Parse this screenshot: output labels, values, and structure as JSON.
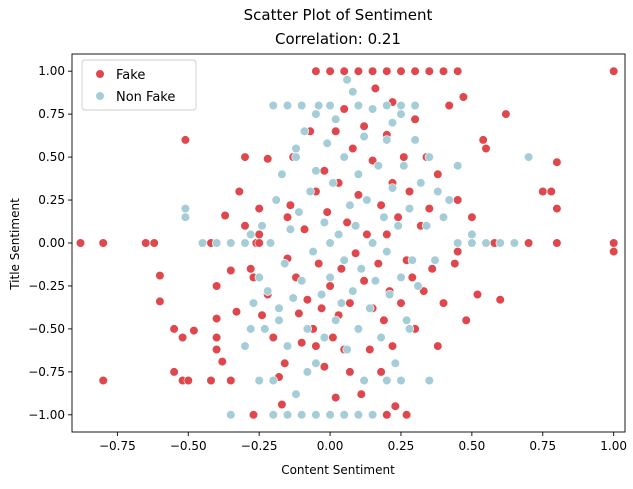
{
  "chart_data": {
    "type": "scatter",
    "title": "Scatter Plot of Sentiment",
    "subtitle": "Correlation: 0.21",
    "xlabel": "Content Sentiment",
    "ylabel": "Title Sentiment",
    "xlim": [
      -0.91,
      1.04
    ],
    "ylim": [
      -1.1,
      1.1
    ],
    "xticks": [
      -0.75,
      -0.5,
      -0.25,
      0.0,
      0.25,
      0.5,
      0.75,
      1.0
    ],
    "xtick_labels": [
      "−0.75",
      "−0.50",
      "−0.25",
      "0.00",
      "0.25",
      "0.50",
      "0.75",
      "1.00"
    ],
    "yticks": [
      -1.0,
      -0.75,
      -0.5,
      -0.25,
      0.0,
      0.25,
      0.5,
      0.75,
      1.0
    ],
    "ytick_labels": [
      "−1.00",
      "−0.75",
      "−0.50",
      "−0.25",
      "0.00",
      "0.25",
      "0.50",
      "0.75",
      "1.00"
    ],
    "grid": false,
    "legend_position": "top-left",
    "series": [
      {
        "name": "Fake",
        "color": "#e0474c",
        "points": [
          [
            -0.88,
            0.0
          ],
          [
            -0.8,
            0.0
          ],
          [
            -0.8,
            -0.8
          ],
          [
            -0.65,
            0.0
          ],
          [
            -0.62,
            0.0
          ],
          [
            -0.6,
            -0.19
          ],
          [
            -0.6,
            -0.34
          ],
          [
            -0.55,
            -0.75
          ],
          [
            -0.55,
            -0.5
          ],
          [
            -0.52,
            -0.55
          ],
          [
            -0.52,
            -0.8
          ],
          [
            -0.51,
            0.6
          ],
          [
            -0.5,
            -0.8
          ],
          [
            -0.48,
            -0.51
          ],
          [
            -0.45,
            0.0
          ],
          [
            -0.42,
            0.0
          ],
          [
            -0.42,
            -0.8
          ],
          [
            -0.4,
            0.0
          ],
          [
            -0.4,
            -0.25
          ],
          [
            -0.4,
            -0.44
          ],
          [
            -0.4,
            -0.55
          ],
          [
            -0.4,
            -0.62
          ],
          [
            -0.38,
            -0.69
          ],
          [
            -0.37,
            0.16
          ],
          [
            -0.35,
            -0.8
          ],
          [
            -0.35,
            -0.16
          ],
          [
            -0.33,
            -0.4
          ],
          [
            -0.3,
            0.5
          ],
          [
            -0.3,
            0.1
          ],
          [
            -0.28,
            -0.15
          ],
          [
            -0.27,
            -0.2
          ],
          [
            -0.26,
            0.0
          ],
          [
            -0.25,
            0.0
          ],
          [
            -0.25,
            0.05
          ],
          [
            -0.25,
            0.2
          ],
          [
            -0.22,
            0.49
          ],
          [
            -0.22,
            -0.3
          ],
          [
            -0.2,
            -0.55
          ],
          [
            -0.18,
            -0.78
          ],
          [
            -0.17,
            -0.94
          ],
          [
            -0.16,
            -0.7
          ],
          [
            -0.15,
            0.15
          ],
          [
            -0.15,
            -0.09
          ],
          [
            -0.14,
            0.22
          ],
          [
            -0.13,
            0.5
          ],
          [
            -0.12,
            -0.2
          ],
          [
            -0.11,
            -0.41
          ],
          [
            -0.1,
            -0.58
          ],
          [
            -0.09,
            0.08
          ],
          [
            -0.08,
            -0.33
          ],
          [
            -0.07,
            0.65
          ],
          [
            -0.06,
            -0.5
          ],
          [
            -0.05,
            0.3
          ],
          [
            -0.05,
            -0.6
          ],
          [
            -0.04,
            -0.12
          ],
          [
            -0.03,
            -0.38
          ],
          [
            -0.02,
            0.42
          ],
          [
            -0.02,
            -0.72
          ],
          [
            -0.01,
            0.18
          ],
          [
            0.0,
            0.0
          ],
          [
            0.0,
            -0.25
          ],
          [
            0.01,
            -0.55
          ],
          [
            0.02,
            0.65
          ],
          [
            0.02,
            -0.9
          ],
          [
            0.03,
            0.35
          ],
          [
            0.03,
            -0.42
          ],
          [
            0.04,
            -0.15
          ],
          [
            0.05,
            0.78
          ],
          [
            0.05,
            -0.62
          ],
          [
            0.06,
            0.12
          ],
          [
            0.07,
            -0.35
          ],
          [
            0.07,
            -0.75
          ],
          [
            0.08,
            0.55
          ],
          [
            0.09,
            -0.06
          ],
          [
            0.1,
            0.28
          ],
          [
            0.1,
            -0.5
          ],
          [
            0.11,
            -0.88
          ],
          [
            0.12,
            0.68
          ],
          [
            0.12,
            -0.22
          ],
          [
            0.13,
            0.05
          ],
          [
            0.14,
            -0.62
          ],
          [
            0.15,
            0.48
          ],
          [
            0.15,
            -0.38
          ],
          [
            0.16,
            0.9
          ],
          [
            0.17,
            -0.12
          ],
          [
            0.18,
            0.22
          ],
          [
            0.18,
            -0.75
          ],
          [
            0.19,
            -0.45
          ],
          [
            0.2,
            0.63
          ],
          [
            0.2,
            0.05
          ],
          [
            0.21,
            -0.28
          ],
          [
            0.22,
            0.35
          ],
          [
            0.22,
            -0.6
          ],
          [
            0.23,
            -0.95
          ],
          [
            0.24,
            0.15
          ],
          [
            0.25,
            -0.35
          ],
          [
            0.26,
            0.5
          ],
          [
            0.27,
            -0.1
          ],
          [
            0.28,
            0.3
          ],
          [
            0.29,
            -0.2
          ],
          [
            0.3,
            0.72
          ],
          [
            0.3,
            -0.5
          ],
          [
            0.32,
            0.1
          ],
          [
            0.33,
            -0.28
          ],
          [
            0.35,
            0.2
          ],
          [
            0.36,
            -0.15
          ],
          [
            0.38,
            0.4
          ],
          [
            0.4,
            -0.35
          ],
          [
            0.42,
            0.8
          ],
          [
            0.44,
            -0.12
          ],
          [
            0.45,
            0.25
          ],
          [
            0.47,
            0.85
          ],
          [
            0.48,
            -0.45
          ],
          [
            0.5,
            0.15
          ],
          [
            0.52,
            -0.3
          ],
          [
            0.54,
            0.6
          ],
          [
            0.55,
            0.55
          ],
          [
            0.58,
            0.0
          ],
          [
            0.6,
            -0.33
          ],
          [
            0.62,
            0.75
          ],
          [
            0.65,
            0.0
          ],
          [
            0.7,
            0.0
          ],
          [
            0.75,
            0.3
          ],
          [
            0.78,
            0.3
          ],
          [
            0.8,
            0.47
          ],
          [
            0.8,
            0.2
          ],
          [
            0.8,
            0.0
          ],
          [
            1.0,
            1.0
          ],
          [
            1.0,
            0.0
          ],
          [
            1.0,
            -0.05
          ],
          [
            -0.05,
            1.0
          ],
          [
            0.0,
            1.0
          ],
          [
            0.05,
            1.0
          ],
          [
            0.1,
            1.0
          ],
          [
            0.15,
            1.0
          ],
          [
            0.2,
            1.0
          ],
          [
            0.25,
            1.0
          ],
          [
            0.3,
            1.0
          ],
          [
            0.35,
            1.0
          ],
          [
            0.4,
            1.0
          ],
          [
            0.45,
            1.0
          ],
          [
            -0.27,
            -1.0
          ],
          [
            -0.2,
            -1.0
          ],
          [
            -0.1,
            -1.0
          ],
          [
            0.0,
            -1.0
          ],
          [
            0.05,
            -1.0
          ],
          [
            0.1,
            -1.0
          ],
          [
            0.2,
            -1.0
          ],
          [
            0.27,
            -1.0
          ],
          [
            -0.3,
            -0.6
          ],
          [
            -0.32,
            0.3
          ],
          [
            0.45,
            -0.05
          ],
          [
            0.38,
            -0.6
          ],
          [
            -0.2,
            0.8
          ],
          [
            0.22,
            0.82
          ],
          [
            0.34,
            0.5
          ],
          [
            -0.24,
            -0.42
          ]
        ]
      },
      {
        "name": "Non Fake",
        "color": "#a5cdd8",
        "points": [
          [
            -0.51,
            0.2
          ],
          [
            -0.51,
            0.15
          ],
          [
            -0.4,
            0.0
          ],
          [
            -0.35,
            -1.0
          ],
          [
            -0.3,
            -0.6
          ],
          [
            -0.28,
            0.05
          ],
          [
            -0.27,
            -0.35
          ],
          [
            -0.25,
            -0.2
          ],
          [
            -0.24,
            0.1
          ],
          [
            -0.23,
            -0.5
          ],
          [
            -0.22,
            -0.28
          ],
          [
            -0.21,
            0.0
          ],
          [
            -0.2,
            -0.8
          ],
          [
            -0.2,
            -1.0
          ],
          [
            -0.19,
            0.25
          ],
          [
            -0.18,
            -0.45
          ],
          [
            -0.17,
            0.4
          ],
          [
            -0.16,
            -0.12
          ],
          [
            -0.15,
            -0.6
          ],
          [
            -0.14,
            0.08
          ],
          [
            -0.13,
            -0.32
          ],
          [
            -0.12,
            0.5
          ],
          [
            -0.12,
            -0.88
          ],
          [
            -0.11,
            0.18
          ],
          [
            -0.1,
            -0.22
          ],
          [
            -0.09,
            0.65
          ],
          [
            -0.08,
            -0.5
          ],
          [
            -0.07,
            0.3
          ],
          [
            -0.06,
            -0.05
          ],
          [
            -0.05,
            -0.7
          ],
          [
            -0.05,
            0.42
          ],
          [
            -0.04,
            0.8
          ],
          [
            -0.03,
            -0.3
          ],
          [
            -0.02,
            0.12
          ],
          [
            -0.02,
            -0.55
          ],
          [
            -0.01,
            0.58
          ],
          [
            0.0,
            0.0
          ],
          [
            0.0,
            -0.2
          ],
          [
            0.01,
            0.35
          ],
          [
            0.02,
            -0.45
          ],
          [
            0.02,
            0.72
          ],
          [
            0.03,
            0.05
          ],
          [
            0.04,
            -0.35
          ],
          [
            0.05,
            0.5
          ],
          [
            0.05,
            -0.1
          ],
          [
            0.06,
            -0.62
          ],
          [
            0.07,
            0.22
          ],
          [
            0.08,
            -0.28
          ],
          [
            0.08,
            0.88
          ],
          [
            0.09,
            0.1
          ],
          [
            0.1,
            -0.5
          ],
          [
            0.1,
            0.4
          ],
          [
            0.11,
            -0.15
          ],
          [
            0.12,
            0.62
          ],
          [
            0.12,
            -0.8
          ],
          [
            0.13,
            0.25
          ],
          [
            0.14,
            -0.38
          ],
          [
            0.15,
            0.0
          ],
          [
            0.15,
            0.78
          ],
          [
            0.16,
            -0.22
          ],
          [
            0.17,
            0.45
          ],
          [
            0.18,
            -0.55
          ],
          [
            0.19,
            0.15
          ],
          [
            0.2,
            -0.05
          ],
          [
            0.2,
            0.6
          ],
          [
            0.21,
            -0.3
          ],
          [
            0.22,
            0.32
          ],
          [
            0.23,
            -0.7
          ],
          [
            0.24,
            0.1
          ],
          [
            0.25,
            0.8
          ],
          [
            0.25,
            -0.2
          ],
          [
            0.26,
            0.45
          ],
          [
            0.27,
            -0.45
          ],
          [
            0.28,
            0.2
          ],
          [
            0.29,
            -0.1
          ],
          [
            0.3,
            0.6
          ],
          [
            0.31,
            -0.25
          ],
          [
            0.32,
            0.35
          ],
          [
            0.34,
            0.1
          ],
          [
            0.35,
            0.5
          ],
          [
            0.37,
            -0.1
          ],
          [
            0.38,
            0.3
          ],
          [
            0.4,
            0.15
          ],
          [
            0.42,
            0.25
          ],
          [
            0.45,
            0.45
          ],
          [
            0.5,
            0.05
          ],
          [
            0.55,
            0.0
          ],
          [
            0.6,
            0.0
          ],
          [
            0.7,
            0.5
          ],
          [
            -0.2,
            0.8
          ],
          [
            -0.15,
            0.8
          ],
          [
            -0.1,
            0.8
          ],
          [
            -0.05,
            0.75
          ],
          [
            0.0,
            0.8
          ],
          [
            0.1,
            0.8
          ],
          [
            0.2,
            0.8
          ],
          [
            0.25,
            0.75
          ],
          [
            0.3,
            0.8
          ],
          [
            -0.2,
            -1.0
          ],
          [
            -0.15,
            -1.0
          ],
          [
            -0.1,
            -1.0
          ],
          [
            -0.05,
            -1.0
          ],
          [
            0.0,
            -1.0
          ],
          [
            0.05,
            -1.0
          ],
          [
            0.1,
            -1.0
          ],
          [
            0.15,
            -1.0
          ],
          [
            -0.3,
            0.0
          ],
          [
            -0.35,
            0.0
          ],
          [
            -0.45,
            0.0
          ],
          [
            0.45,
            0.0
          ],
          [
            0.5,
            0.0
          ],
          [
            0.65,
            0.0
          ],
          [
            -0.25,
            -0.8
          ],
          [
            0.2,
            -0.8
          ],
          [
            0.25,
            -0.8
          ],
          [
            -0.28,
            -0.5
          ],
          [
            0.28,
            -0.5
          ],
          [
            0.35,
            -0.8
          ],
          [
            -0.12,
            0.55
          ],
          [
            0.22,
            0.7
          ],
          [
            -0.08,
            -0.75
          ],
          [
            0.06,
            0.95
          ],
          [
            -0.18,
            -0.38
          ]
        ]
      }
    ]
  }
}
